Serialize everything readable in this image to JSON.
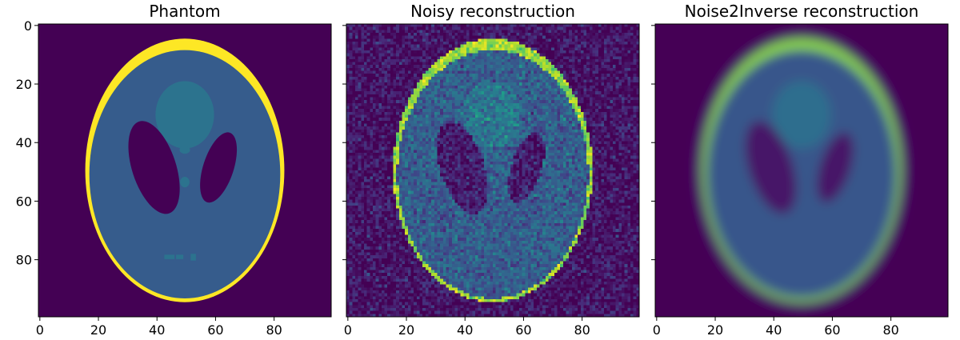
{
  "chart_data": [
    {
      "type": "heatmap",
      "title": "Phantom",
      "image_kind": "phantom",
      "xlim": [
        0,
        99
      ],
      "ylim": [
        99,
        0
      ],
      "x_ticks": [
        0,
        20,
        40,
        60,
        80
      ],
      "y_ticks": [
        0,
        20,
        40,
        60,
        80
      ],
      "y_tick_labels_visible": true,
      "colormap": "viridis"
    },
    {
      "type": "heatmap",
      "title": "Noisy reconstruction",
      "image_kind": "noisy",
      "xlim": [
        0,
        99
      ],
      "ylim": [
        99,
        0
      ],
      "x_ticks": [
        0,
        20,
        40,
        60,
        80
      ],
      "y_ticks": [
        0,
        20,
        40,
        60,
        80
      ],
      "y_tick_labels_visible": false,
      "colormap": "viridis"
    },
    {
      "type": "heatmap",
      "title": "Noise2Inverse reconstruction",
      "image_kind": "denoised",
      "xlim": [
        0,
        99
      ],
      "ylim": [
        99,
        0
      ],
      "x_ticks": [
        0,
        20,
        40,
        60,
        80
      ],
      "y_ticks": [
        0,
        20,
        40,
        60,
        80
      ],
      "y_tick_labels_visible": false,
      "colormap": "viridis"
    }
  ]
}
